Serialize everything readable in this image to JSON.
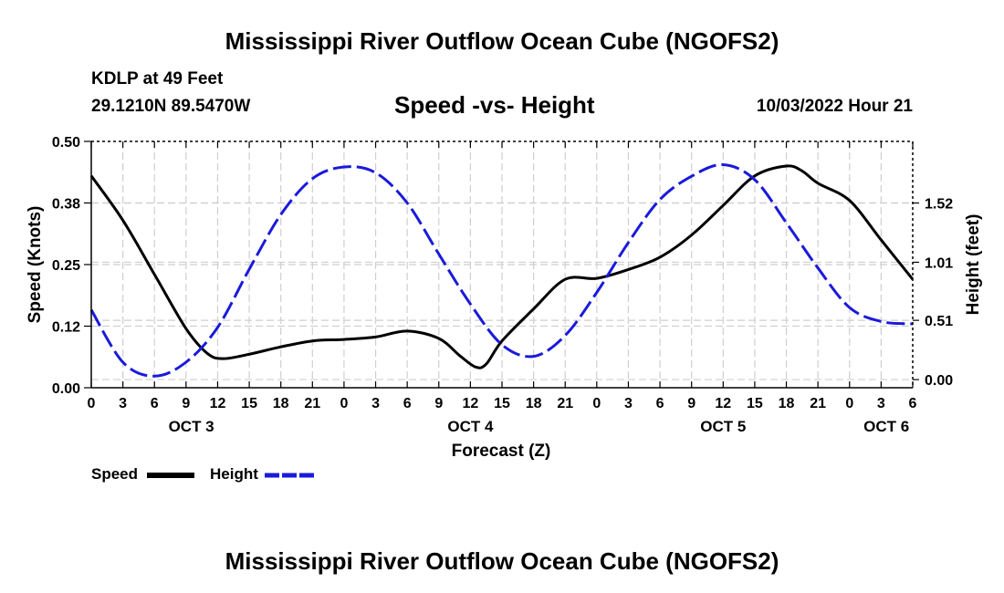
{
  "page": {
    "title": "Mississippi River Outflow Ocean Cube (NGOFS2)",
    "footer_title": "Mississippi River Outflow Ocean Cube (NGOFS2)",
    "station": "KDLP at 49 Feet",
    "coords": "29.1210N  89.5470W",
    "subtitle": "Speed -vs- Height",
    "run_time": "10/03/2022 Hour 21"
  },
  "legend": {
    "speed_label": "Speed",
    "height_label": "Height"
  },
  "chart_data": {
    "type": "line",
    "title": "Speed -vs- Height",
    "xlabel": "Forecast (Z)",
    "ylabel": "Speed (Knots)",
    "y2label": "Height (feet)",
    "x_unit": "forecast hour from OCT 3 00Z",
    "xlim": [
      0,
      78
    ],
    "x_ticks": [
      0,
      3,
      6,
      9,
      12,
      15,
      18,
      21,
      24,
      27,
      30,
      33,
      36,
      39,
      42,
      45,
      48,
      51,
      54,
      57,
      60,
      63,
      66,
      69,
      72,
      75,
      78
    ],
    "x_tick_labels": [
      "0",
      "3",
      "6",
      "9",
      "12",
      "15",
      "18",
      "21",
      "0",
      "3",
      "6",
      "9",
      "12",
      "15",
      "18",
      "21",
      "0",
      "3",
      "6",
      "9",
      "12",
      "15",
      "18",
      "21",
      "0",
      "3",
      "6"
    ],
    "date_labels": [
      {
        "label": "OCT 3",
        "x": 9.5
      },
      {
        "label": "OCT 4",
        "x": 36
      },
      {
        "label": "OCT 5",
        "x": 60
      },
      {
        "label": "OCT 6",
        "x": 75.5
      }
    ],
    "ylim": [
      0,
      0.5
    ],
    "y_ticks": [
      0,
      0.125,
      0.25,
      0.375,
      0.5
    ],
    "y_tick_labels": [
      "0.00",
      "0.12",
      "0.25",
      "0.38",
      "0.50"
    ],
    "y2lim": [
      -0.07,
      2.05
    ],
    "y2_ticks": [
      0.0,
      0.51,
      1.01,
      1.52
    ],
    "y2_tick_labels": [
      "0.00",
      "0.51",
      "1.01",
      "1.52"
    ],
    "grid": true,
    "series": [
      {
        "name": "Speed",
        "axis": "left",
        "color": "#000000",
        "style": "solid",
        "x": [
          0,
          3,
          6,
          9,
          11,
          12.5,
          15,
          18,
          21,
          24,
          27,
          30,
          33,
          35,
          36.5,
          37.5,
          39,
          42,
          45,
          48,
          51,
          54,
          57,
          60,
          63,
          66,
          67.5,
          69,
          72,
          75,
          78
        ],
        "y": [
          0.43,
          0.34,
          0.23,
          0.12,
          0.07,
          0.059,
          0.068,
          0.083,
          0.095,
          0.098,
          0.103,
          0.115,
          0.1,
          0.065,
          0.042,
          0.048,
          0.095,
          0.16,
          0.22,
          0.222,
          0.24,
          0.265,
          0.31,
          0.37,
          0.43,
          0.45,
          0.44,
          0.415,
          0.38,
          0.3,
          0.22
        ]
      },
      {
        "name": "Height",
        "axis": "right",
        "color": "#1a1adb",
        "style": "dashed",
        "x": [
          0,
          3,
          6,
          9,
          12,
          15,
          18,
          21,
          24,
          27,
          30,
          33,
          36,
          39,
          42,
          45,
          48,
          51,
          54,
          57,
          60,
          63,
          66,
          69,
          72,
          75,
          78
        ],
        "y": [
          0.6,
          0.15,
          0.03,
          0.15,
          0.45,
          0.95,
          1.42,
          1.73,
          1.83,
          1.78,
          1.52,
          1.08,
          0.65,
          0.3,
          0.2,
          0.38,
          0.75,
          1.18,
          1.55,
          1.75,
          1.85,
          1.72,
          1.35,
          0.96,
          0.62,
          0.5,
          0.48
        ]
      }
    ]
  }
}
